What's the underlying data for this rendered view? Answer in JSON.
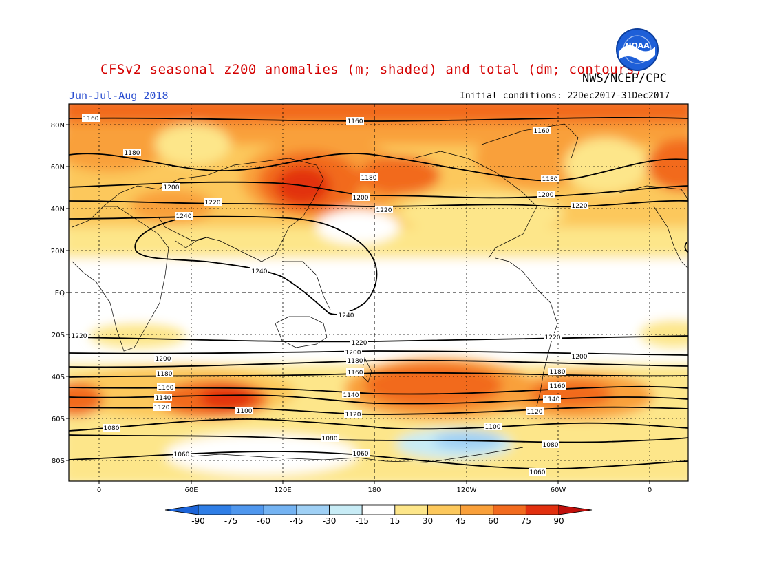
{
  "title": "CFSv2 seasonal z200 anomalies (m; shaded) and total (dm; contours)",
  "agency": "NWS/NCEP/CPC",
  "period": "Jun-Jul-Aug 2018",
  "initial_conditions": "Initial conditions: 22Dec2017-31Dec2017",
  "logo": {
    "name": "NOAA",
    "icon": "noaa-logo-icon",
    "colors": {
      "outer": "#1e90ff",
      "inner": "#ffffff"
    }
  },
  "map": {
    "projection": "cylindrical equidistant",
    "lon_ticks": [
      "0",
      "60E",
      "120E",
      "180",
      "120W",
      "60W",
      "0"
    ],
    "lat_ticks": [
      "80N",
      "60N",
      "40N",
      "20N",
      "EQ",
      "20S",
      "40S",
      "60S",
      "80S"
    ],
    "grid": "dotted",
    "contour_labels": [
      {
        "text": "1160"
      },
      {
        "text": "1160"
      },
      {
        "text": "1160"
      },
      {
        "text": "1180"
      },
      {
        "text": "1180"
      },
      {
        "text": "1180"
      },
      {
        "text": "1200"
      },
      {
        "text": "1200"
      },
      {
        "text": "1200"
      },
      {
        "text": "1220"
      },
      {
        "text": "1220"
      },
      {
        "text": "1220"
      },
      {
        "text": "1240"
      },
      {
        "text": "1240"
      },
      {
        "text": "1240"
      },
      {
        "text": "1220"
      },
      {
        "text": "1220"
      },
      {
        "text": "1220"
      },
      {
        "text": "1200"
      },
      {
        "text": "1200"
      },
      {
        "text": "1200"
      },
      {
        "text": "1180"
      },
      {
        "text": "1180"
      },
      {
        "text": "1180"
      },
      {
        "text": "1160"
      },
      {
        "text": "1160"
      },
      {
        "text": "1160"
      },
      {
        "text": "1140"
      },
      {
        "text": "1140"
      },
      {
        "text": "1140"
      },
      {
        "text": "1120"
      },
      {
        "text": "1120"
      },
      {
        "text": "1120"
      },
      {
        "text": "1100"
      },
      {
        "text": "1100"
      },
      {
        "text": "1080"
      },
      {
        "text": "1080"
      },
      {
        "text": "1080"
      },
      {
        "text": "1060"
      },
      {
        "text": "1060"
      },
      {
        "text": "1060"
      }
    ]
  },
  "colorbar": {
    "labels": [
      "-90",
      "-75",
      "-60",
      "-45",
      "-30",
      "-15",
      "15",
      "30",
      "45",
      "60",
      "75",
      "90"
    ],
    "colors": [
      "#1c64d8",
      "#2f7ee6",
      "#4f97ee",
      "#74b3f2",
      "#9fd0f5",
      "#c8ecf6",
      "#ffffff",
      "#fde68a",
      "#fcc85c",
      "#f9a03a",
      "#f26b1f",
      "#e2300f",
      "#c1100c"
    ]
  }
}
